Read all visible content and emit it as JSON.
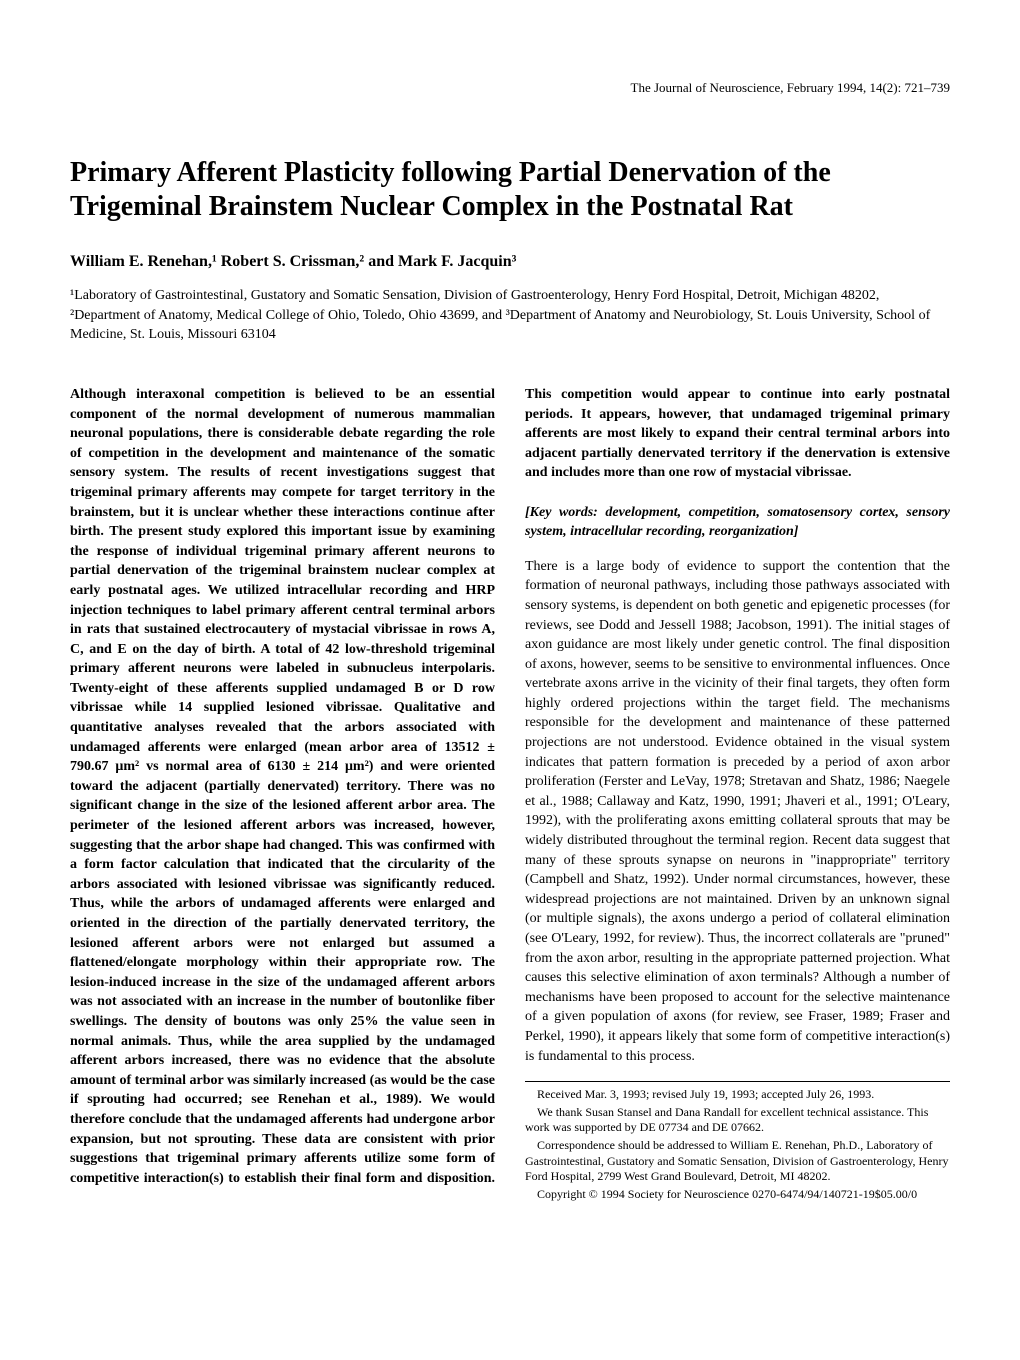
{
  "journal_header": "The Journal of Neuroscience, February 1994, 14(2): 721–739",
  "title": "Primary Afferent Plasticity following Partial Denervation of the Trigeminal Brainstem Nuclear Complex in the Postnatal Rat",
  "authors": "William E. Renehan,¹ Robert S. Crissman,² and Mark F. Jacquin³",
  "affiliations": "¹Laboratory of Gastrointestinal, Gustatory and Somatic Sensation, Division of Gastroenterology, Henry Ford Hospital, Detroit, Michigan 48202, ²Department of Anatomy, Medical College of Ohio, Toledo, Ohio 43699, and ³Department of Anatomy and Neurobiology, St. Louis University, School of Medicine, St. Louis, Missouri 63104",
  "abstract": "Although interaxonal competition is believed to be an essential component of the normal development of numerous mammalian neuronal populations, there is considerable debate regarding the role of competition in the development and maintenance of the somatic sensory system. The results of recent investigations suggest that trigeminal primary afferents may compete for target territory in the brainstem, but it is unclear whether these interactions continue after birth. The present study explored this important issue by examining the response of individual trigeminal primary afferent neurons to partial denervation of the trigeminal brainstem nuclear complex at early postnatal ages. We utilized intracellular recording and HRP injection techniques to label primary afferent central terminal arbors in rats that sustained electrocautery of mystacial vibrissae in rows A, C, and E on the day of birth. A total of 42 low-threshold trigeminal primary afferent neurons were labeled in subnucleus interpolaris. Twenty-eight of these afferents supplied undamaged B or D row vibrissae while 14 supplied lesioned vibrissae. Qualitative and quantitative analyses revealed that the arbors associated with undamaged afferents were enlarged (mean arbor area of 13512 ± 790.67 μm² vs normal area of 6130 ± 214 μm²) and were oriented toward the adjacent (partially denervated) territory. There was no significant change in the size of the lesioned afferent arbor area. The perimeter of the lesioned afferent arbors was increased, however, suggesting that the arbor shape had changed. This was confirmed with a form factor calculation that indicated that the circularity of the arbors associated with lesioned vibrissae was significantly reduced. Thus, while the arbors of undamaged afferents were enlarged and oriented in the direction of the partially denervated territory, the lesioned afferent arbors were not enlarged but assumed a flattened/elongate morphology within their appropriate row. The lesion-induced increase in the size of the undamaged afferent arbors was not associated with an increase in the number of boutonlike fiber swellings. The density of boutons was only 25% the value seen in normal animals. Thus, while the area supplied by the undamaged afferent arbors increased, there was no evidence that the absolute amount of terminal arbor was similarly increased (as would be the case if sprouting had occurred; see Renehan et al., 1989). We would therefore conclude that the undamaged afferents had undergone arbor expansion, but not sprouting. These data are consistent with prior suggestions that trigeminal primary afferents utilize some form of competitive interaction(s) to establish their final form and disposition. This competition would appear to continue into early postnatal periods. It appears, however, that undamaged trigeminal primary afferents are most likely to expand their central terminal arbors into adjacent partially denervated territory if the denervation is extensive and includes more than one row of mystacial vibrissae.",
  "keywords": "[Key words: development, competition, somatosensory cortex, sensory system, intracellular recording, reorganization]",
  "body_text": "There is a large body of evidence to support the contention that the formation of neuronal pathways, including those pathways associated with sensory systems, is dependent on both genetic and epigenetic processes (for reviews, see Dodd and Jessell 1988; Jacobson, 1991). The initial stages of axon guidance are most likely under genetic control. The final disposition of axons, however, seems to be sensitive to environmental influences. Once vertebrate axons arrive in the vicinity of their final targets, they often form highly ordered projections within the target field. The mechanisms responsible for the development and maintenance of these patterned projections are not understood. Evidence obtained in the visual system indicates that pattern formation is preceded by a period of axon arbor proliferation (Ferster and LeVay, 1978; Stretavan and Shatz, 1986; Naegele et al., 1988; Callaway and Katz, 1990, 1991; Jhaveri et al., 1991; O'Leary, 1992), with the proliferating axons emitting collateral sprouts that may be widely distributed throughout the terminal region. Recent data suggest that many of these sprouts synapse on neurons in \"inappropriate\" territory (Campbell and Shatz, 1992). Under normal circumstances, however, these widespread projections are not maintained. Driven by an unknown signal (or multiple signals), the axons undergo a period of collateral elimination (see O'Leary, 1992, for review). Thus, the incorrect collaterals are \"pruned\" from the axon arbor, resulting in the appropriate patterned projection. What causes this selective elimination of axon terminals? Although a number of mechanisms have been proposed to account for the selective maintenance of a given population of axons (for review, see Fraser, 1989; Fraser and Perkel, 1990), it appears likely that some form of competitive interaction(s) is fundamental to this process.",
  "footnotes": {
    "received": "Received Mar. 3, 1993; revised July 19, 1993; accepted July 26, 1993.",
    "thanks": "We thank Susan Stansel and Dana Randall for excellent technical assistance. This work was supported by DE 07734 and DE 07662.",
    "correspondence": "Correspondence should be addressed to William E. Renehan, Ph.D., Laboratory of Gastrointestinal, Gustatory and Somatic Sensation, Division of Gastroenterology, Henry Ford Hospital, 2799 West Grand Boulevard, Detroit, MI 48202.",
    "copyright": "Copyright © 1994 Society for Neuroscience 0270-6474/94/140721-19$05.00/0"
  }
}
